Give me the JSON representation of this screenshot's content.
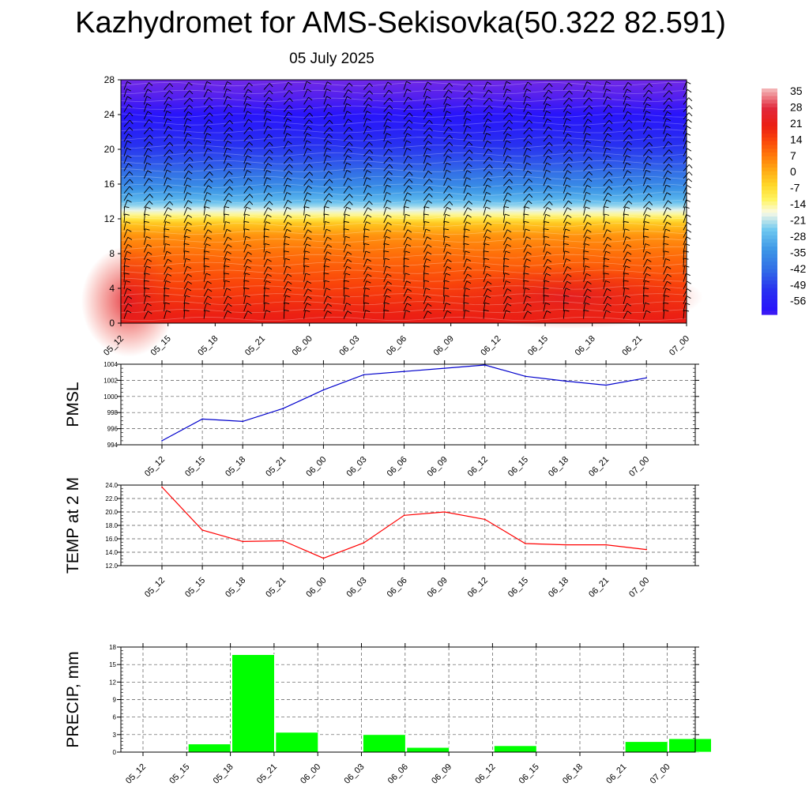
{
  "title": "Kazhydromet for AMS-Sekisovka(50.322 82.591)",
  "subtitle": "05 July 2025",
  "time_labels": [
    "05_12",
    "05_15",
    "05_18",
    "05_21",
    "06_00",
    "06_03",
    "06_06",
    "06_09",
    "06_12",
    "06_15",
    "06_18",
    "06_21",
    "07_00"
  ],
  "colors": {
    "pmsl_line": "#0000cc",
    "temp_line": "#ff0000",
    "precip_bar": "#00ff00",
    "wind_barb": "#000000"
  },
  "chart_data": [
    {
      "type": "heatmap",
      "description_of_content": "upper-air temperature cross-section with wind barbs",
      "y_ticks": [
        0,
        4,
        8,
        12,
        16,
        20,
        24,
        28
      ],
      "ylim": [
        0,
        28
      ],
      "x": [
        "05_12",
        "05_15",
        "05_18",
        "05_21",
        "06_00",
        "06_03",
        "06_06",
        "06_09",
        "06_12",
        "06_15",
        "06_18",
        "06_21",
        "07_00"
      ],
      "colorbar": {
        "labels": [
          "35",
          "28",
          "21",
          "14",
          "7",
          "0",
          "-7",
          "-14",
          "-21",
          "-28",
          "-35",
          "-42",
          "-49",
          "-56"
        ],
        "range": [
          -56,
          35
        ]
      },
      "level_temperature_profile": [
        {
          "level": 0,
          "value": 21
        },
        {
          "level": 2,
          "value": 18
        },
        {
          "level": 4,
          "value": 15
        },
        {
          "level": 6,
          "value": 12
        },
        {
          "level": 8,
          "value": 9
        },
        {
          "level": 10,
          "value": 5
        },
        {
          "level": 11.5,
          "value": -2
        },
        {
          "level": 12.5,
          "value": -12
        },
        {
          "level": 14,
          "value": -24
        },
        {
          "level": 16,
          "value": -33
        },
        {
          "level": 18,
          "value": -40
        },
        {
          "level": 20,
          "value": -45
        },
        {
          "level": 22,
          "value": -50
        },
        {
          "level": 24,
          "value": -54
        },
        {
          "level": 26,
          "value": -57
        },
        {
          "level": 28,
          "value": -59
        }
      ]
    },
    {
      "type": "line",
      "ylabel": "PMSL",
      "ylim": [
        994,
        1004
      ],
      "y_ticks": [
        994,
        996,
        998,
        1000,
        1002,
        1004
      ],
      "grid": true,
      "x": [
        "05_12",
        "05_15",
        "05_18",
        "05_21",
        "06_00",
        "06_03",
        "06_06",
        "06_09",
        "06_12",
        "06_15",
        "06_18",
        "06_21",
        "07_00"
      ],
      "series": [
        {
          "values": [
            994.5,
            997.2,
            996.9,
            998.5,
            1000.8,
            1002.7,
            1003.1,
            1003.5,
            1003.9,
            1002.5,
            1001.9,
            1001.4,
            1002.3
          ]
        }
      ]
    },
    {
      "type": "line",
      "ylabel": "TEMP at 2 M",
      "ylim": [
        12,
        24
      ],
      "y_ticks": [
        "12.0",
        "14.0",
        "16.0",
        "18.0",
        "20.0",
        "22.0",
        "24.0"
      ],
      "grid": true,
      "x": [
        "05_12",
        "05_15",
        "05_18",
        "05_21",
        "06_00",
        "06_03",
        "06_06",
        "06_09",
        "06_12",
        "06_15",
        "06_18",
        "06_21",
        "07_00"
      ],
      "series": [
        {
          "values": [
            23.7,
            17.3,
            15.6,
            15.7,
            13.1,
            15.4,
            19.5,
            20.0,
            18.9,
            15.3,
            15.1,
            15.1,
            14.4
          ]
        }
      ]
    },
    {
      "type": "bar",
      "ylabel": "PRECIP, mm",
      "ylim": [
        0,
        18
      ],
      "y_ticks": [
        0,
        3,
        6,
        9,
        12,
        15,
        18
      ],
      "grid": true,
      "categories": [
        "05_12",
        "05_15",
        "05_18",
        "05_21",
        "06_00",
        "06_03",
        "06_06",
        "06_09",
        "06_12",
        "06_15",
        "06_18",
        "06_21",
        "07_00"
      ],
      "values": [
        0,
        1.4,
        16.7,
        3.4,
        0,
        3.0,
        0.8,
        0.1,
        1.1,
        0,
        0,
        1.8,
        2.3
      ]
    }
  ]
}
